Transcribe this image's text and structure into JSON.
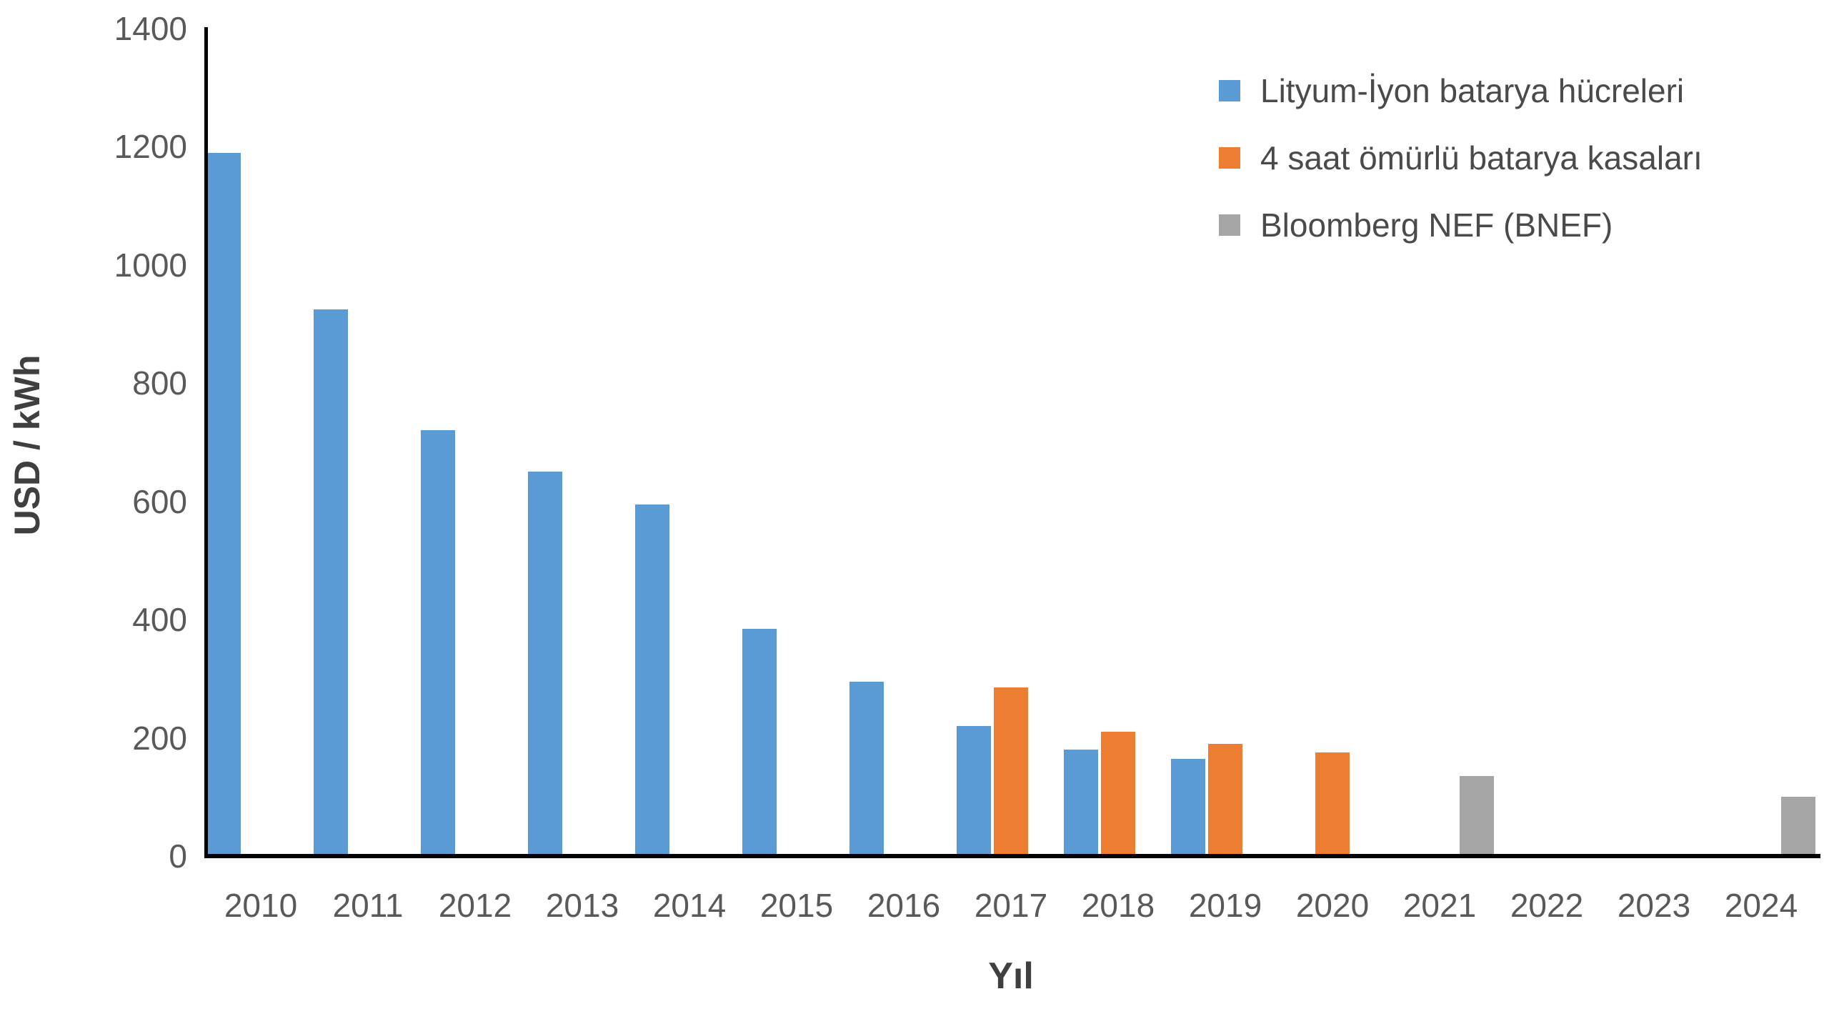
{
  "chart_data": {
    "type": "bar",
    "title": "",
    "xlabel": "Yıl",
    "ylabel": "USD / kWh",
    "ylim": [
      0,
      1400
    ],
    "yticks": [
      0,
      200,
      400,
      600,
      800,
      1000,
      1200,
      1400
    ],
    "grid": false,
    "legend_position": "top-right",
    "axis_color": "#000000",
    "text_color": "#595959",
    "categories": [
      "2010",
      "2011",
      "2012",
      "2013",
      "2014",
      "2015",
      "2016",
      "2017",
      "2018",
      "2019",
      "2020",
      "2021",
      "2022",
      "2023",
      "2024"
    ],
    "series": [
      {
        "name": "Lityum-İyon batarya hücreleri",
        "color": "#5B9BD5",
        "values": [
          1190,
          925,
          720,
          650,
          595,
          385,
          295,
          220,
          180,
          165,
          null,
          null,
          null,
          null,
          null
        ]
      },
      {
        "name": "4 saat ömürlü batarya kasaları",
        "color": "#ED7D31",
        "values": [
          null,
          null,
          null,
          null,
          null,
          null,
          null,
          285,
          210,
          190,
          175,
          null,
          null,
          null,
          null
        ]
      },
      {
        "name": "Bloomberg NEF (BNEF)",
        "color": "#A5A5A5",
        "values": [
          null,
          null,
          null,
          null,
          null,
          null,
          null,
          null,
          null,
          null,
          null,
          135,
          null,
          null,
          100
        ]
      }
    ]
  }
}
